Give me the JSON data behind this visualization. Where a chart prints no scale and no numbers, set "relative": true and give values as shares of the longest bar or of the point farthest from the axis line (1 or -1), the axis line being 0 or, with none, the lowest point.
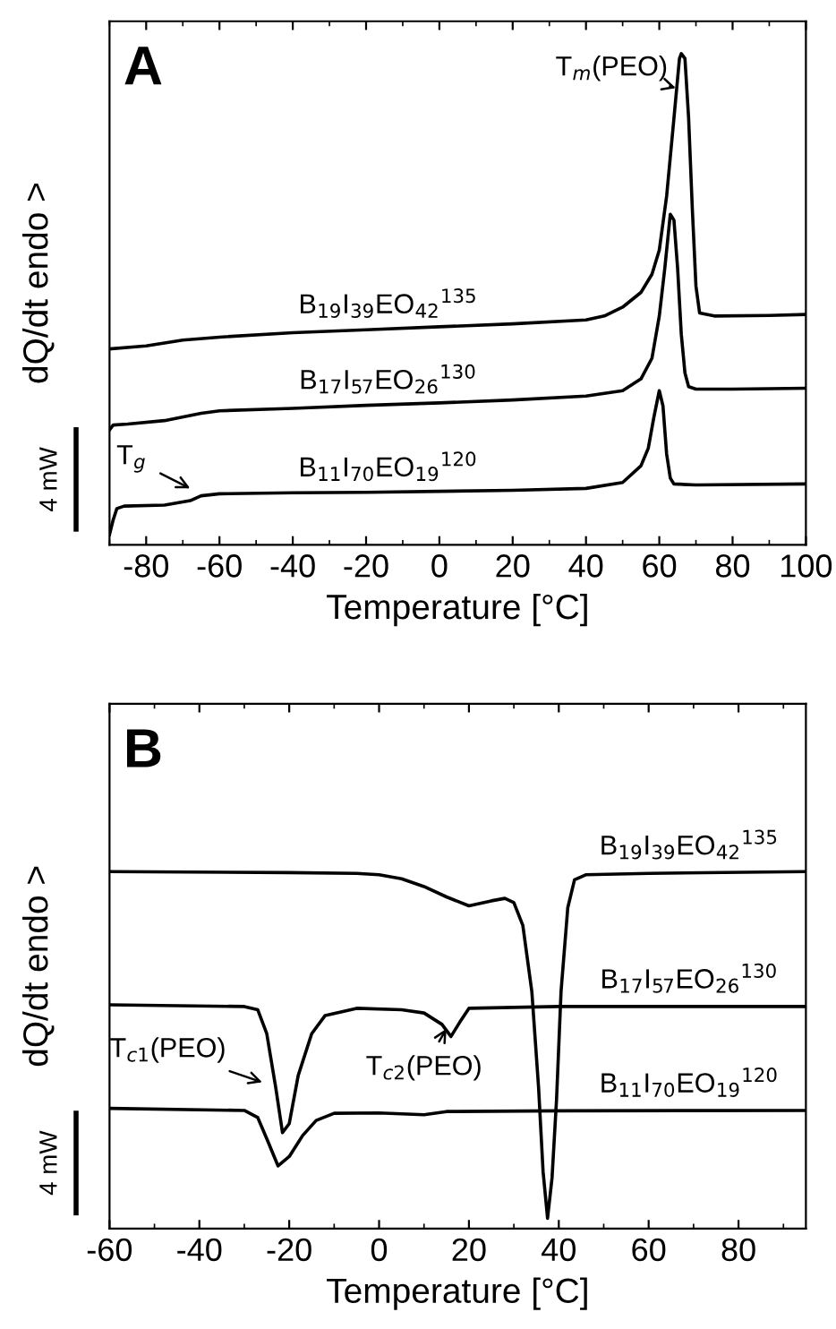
{
  "chart_data": [
    {
      "type": "line",
      "title": "A",
      "xlabel": "Temperature [°C]",
      "ylabel": "dQ/dt endo >",
      "relative": true,
      "xlim": [
        -90,
        100
      ],
      "xticks": [
        -80,
        -60,
        -40,
        -20,
        0,
        20,
        40,
        60,
        80,
        100
      ],
      "grid": false,
      "legend": false,
      "marker": "none",
      "line_style": "solid",
      "annotations": [
        "T$_{m}$(PEO)",
        "T$_{g}$",
        "4 mW"
      ],
      "series": [
        {
          "name": "B$_{19}$I$_{39}$EO$_{42}$$^{135}$",
          "color": "#000000",
          "x": [
            -90,
            -80,
            -70,
            -60,
            -40,
            -20,
            0,
            20,
            40,
            45,
            50,
            55,
            58,
            60,
            62,
            64,
            65.5,
            66,
            67,
            68,
            69,
            70,
            71,
            75,
            90,
            100
          ],
          "values": [
            0.399,
            0.405,
            0.417,
            0.423,
            0.432,
            0.438,
            0.444,
            0.45,
            0.458,
            0.466,
            0.484,
            0.514,
            0.551,
            0.6,
            0.71,
            0.869,
            0.99,
            1.0,
            0.99,
            0.869,
            0.686,
            0.527,
            0.472,
            0.466,
            0.467,
            0.469
          ]
        },
        {
          "name": "B$_{17}$I$_{57}$EO$_{26}$$^{130}$",
          "color": "#000000",
          "x": [
            -90,
            -89,
            -85,
            -75,
            -65,
            -60,
            -40,
            -20,
            0,
            20,
            40,
            50,
            55,
            58,
            60,
            61.5,
            63,
            64,
            65,
            66,
            67,
            68,
            70,
            80,
            100
          ],
          "values": [
            0.234,
            0.244,
            0.246,
            0.253,
            0.268,
            0.273,
            0.278,
            0.284,
            0.289,
            0.295,
            0.303,
            0.314,
            0.338,
            0.38,
            0.466,
            0.563,
            0.673,
            0.661,
            0.563,
            0.429,
            0.35,
            0.322,
            0.317,
            0.317,
            0.319
          ]
        },
        {
          "name": "B$_{11}$I$_{70}$EO$_{19}$$^{120}$",
          "color": "#000000",
          "x": [
            -90,
            -89,
            -88,
            -86,
            -75,
            -68,
            -65,
            -60,
            -40,
            -20,
            0,
            20,
            40,
            50,
            55,
            57,
            58.5,
            60,
            61,
            62,
            63,
            64,
            70,
            100
          ],
          "values": [
            0.021,
            0.051,
            0.074,
            0.079,
            0.081,
            0.09,
            0.1,
            0.104,
            0.106,
            0.107,
            0.109,
            0.111,
            0.115,
            0.127,
            0.161,
            0.197,
            0.259,
            0.314,
            0.283,
            0.185,
            0.136,
            0.124,
            0.122,
            0.124
          ]
        }
      ]
    },
    {
      "type": "line",
      "title": "B",
      "xlabel": "Temperature [°C]",
      "ylabel": "dQ/dt endo >",
      "relative": true,
      "xlim": [
        -60,
        95
      ],
      "xticks": [
        -60,
        -40,
        -20,
        0,
        20,
        40,
        60,
        80
      ],
      "grid": false,
      "legend": false,
      "marker": "none",
      "line_style": "solid",
      "annotations": [
        "T$_{c1}$(PEO)",
        "T$_{c2}$(PEO)",
        "4 mW"
      ],
      "series": [
        {
          "name": "B$_{19}$I$_{39}$EO$_{42}$$^{135}$",
          "color": "#000000",
          "x": [
            -60,
            -20,
            -5,
            0,
            5,
            10,
            15,
            20,
            25,
            28,
            30,
            32,
            34,
            35.5,
            36.5,
            37.5,
            38.5,
            39.5,
            40.5,
            42,
            43.5,
            46,
            60,
            95
          ],
          "values": [
            1.0,
            0.997,
            0.995,
            0.991,
            0.98,
            0.958,
            0.929,
            0.904,
            0.918,
            0.925,
            0.913,
            0.849,
            0.664,
            0.395,
            0.16,
            0.029,
            0.143,
            0.362,
            0.664,
            0.899,
            0.977,
            0.991,
            0.995,
            1.0
          ]
        },
        {
          "name": "B$_{17}$I$_{57}$EO$_{26}$$^{130}$",
          "color": "#000000",
          "x": [
            -60,
            -30,
            -27,
            -25,
            -23,
            -21.5,
            -20,
            -18,
            -15,
            -12,
            -5,
            5,
            10,
            14,
            16,
            18,
            20,
            40,
            95
          ],
          "values": [
            0.627,
            0.622,
            0.613,
            0.546,
            0.395,
            0.269,
            0.294,
            0.429,
            0.546,
            0.597,
            0.617,
            0.613,
            0.604,
            0.572,
            0.538,
            0.579,
            0.617,
            0.622,
            0.622
          ]
        },
        {
          "name": "B$_{11}$I$_{70}$EO$_{19}$$^{120}$",
          "color": "#000000",
          "x": [
            -60,
            -30,
            -27,
            -25,
            -22.5,
            -20,
            -17,
            -14,
            -10,
            0,
            10,
            15,
            40,
            95
          ],
          "values": [
            0.337,
            0.331,
            0.311,
            0.252,
            0.176,
            0.202,
            0.261,
            0.303,
            0.323,
            0.324,
            0.319,
            0.328,
            0.33,
            0.331
          ]
        }
      ]
    }
  ]
}
